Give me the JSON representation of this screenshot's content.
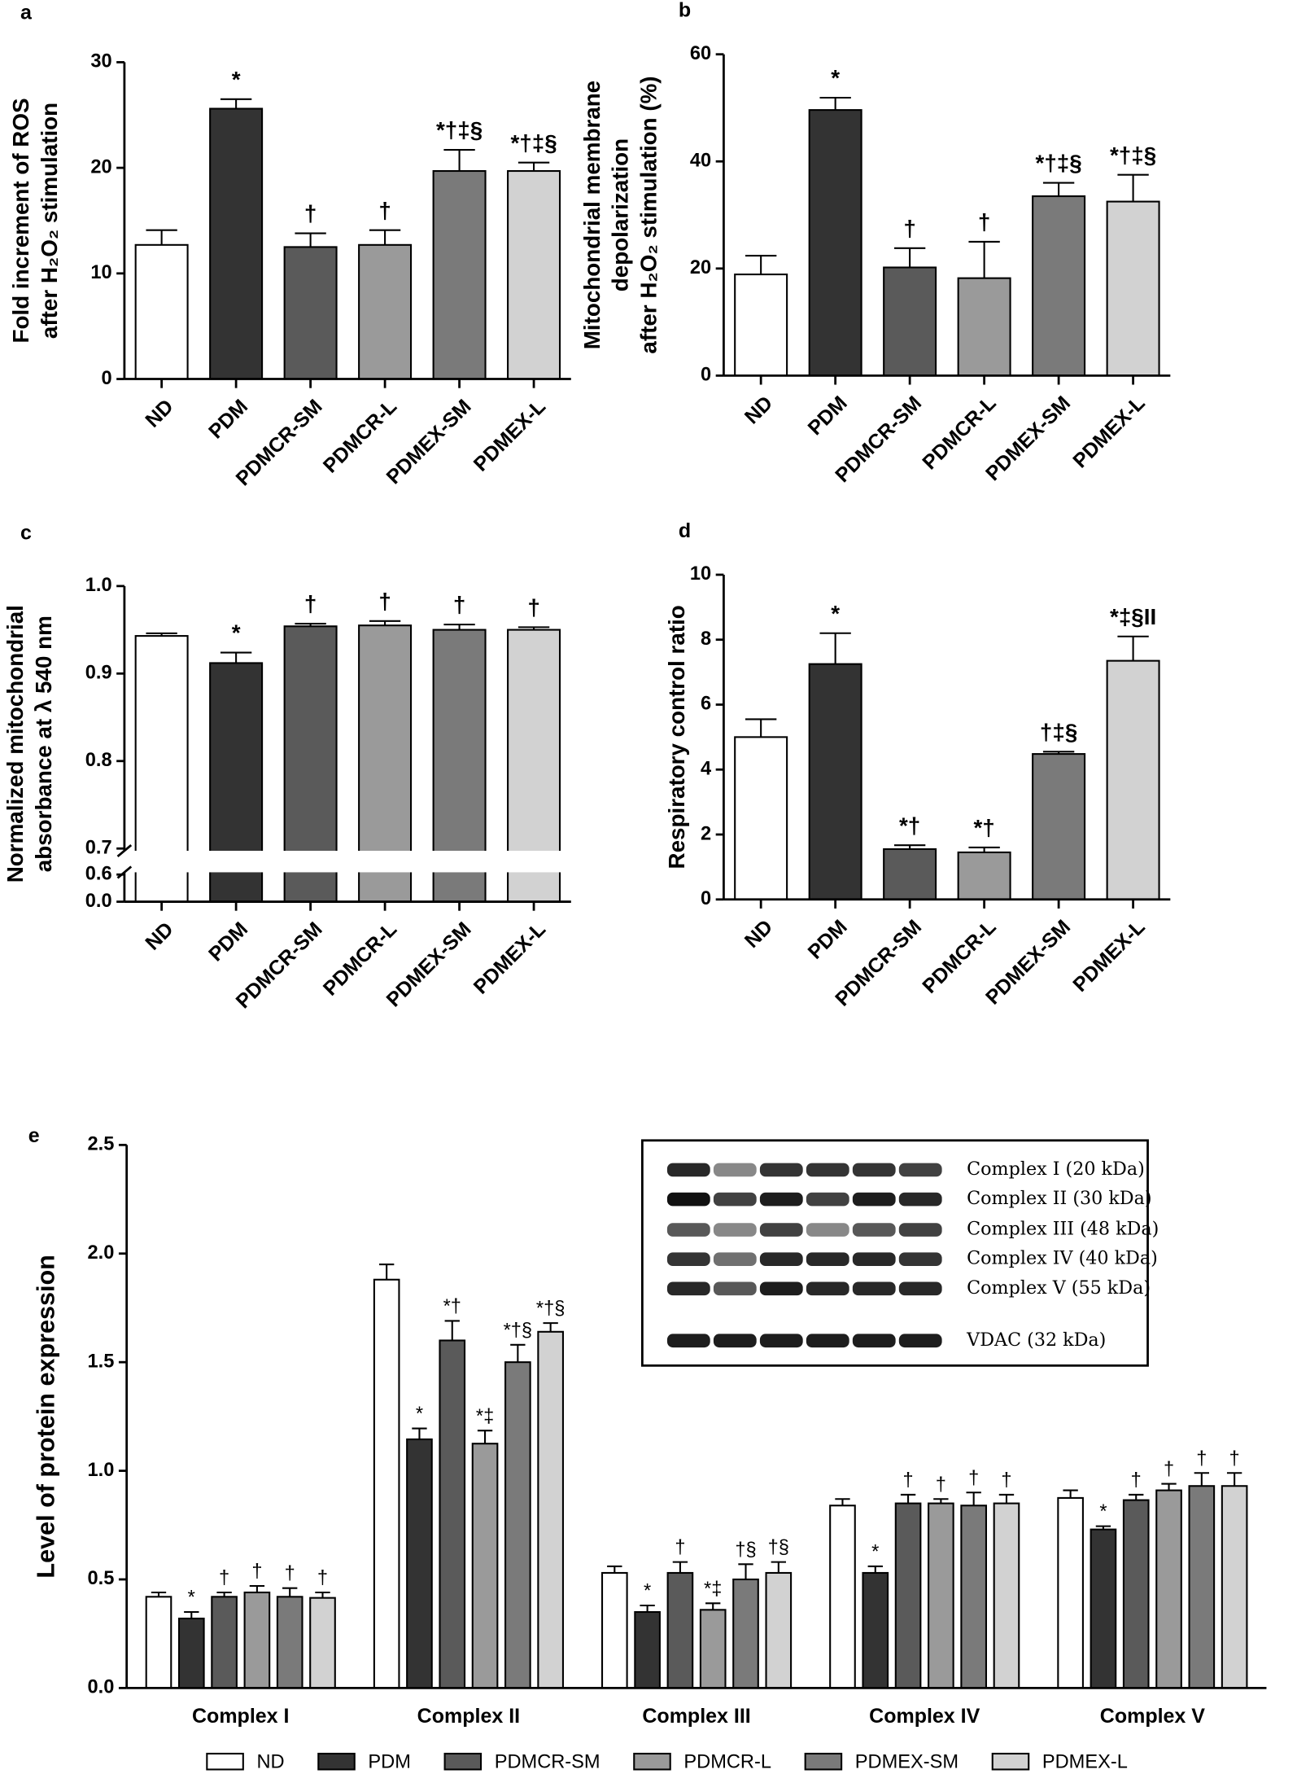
{
  "chart_data": [
    {
      "type": "bar",
      "panel": "a",
      "y_label": [
        "Fold increment of ROS",
        "after H₂O₂ stimulation"
      ],
      "categories": [
        "ND",
        "PDM",
        "PDMCR-SM",
        "PDMCR-L",
        "PDMEX-SM",
        "PDMEX-L"
      ],
      "values": [
        12.7,
        25.6,
        12.5,
        12.7,
        19.7,
        19.7
      ],
      "errors": [
        1.4,
        0.9,
        1.3,
        1.4,
        2.0,
        0.8
      ],
      "annotations": [
        null,
        "*",
        "†",
        "†",
        "*†‡§",
        "*†‡§"
      ],
      "colors": [
        "#ffffff",
        "#333333",
        "#5a5a5a",
        "#9a9a9a",
        "#7a7a7a",
        "#d2d2d2"
      ],
      "ylim": [
        0,
        30
      ],
      "yticks": [
        0,
        10,
        20,
        30
      ]
    },
    {
      "type": "bar",
      "panel": "b",
      "y_label": [
        "Mitochondrial membrane",
        "depolarization",
        "after H₂O₂ stimulation (%)"
      ],
      "categories": [
        "ND",
        "PDM",
        "PDMCR-SM",
        "PDMCR-L",
        "PDMEX-SM",
        "PDMEX-L"
      ],
      "values": [
        18.9,
        49.6,
        20.2,
        18.2,
        33.5,
        32.5
      ],
      "errors": [
        3.5,
        2.3,
        3.6,
        6.8,
        2.5,
        5.0
      ],
      "annotations": [
        null,
        "*",
        "†",
        "†",
        "*†‡§",
        "*†‡§"
      ],
      "colors": [
        "#ffffff",
        "#333333",
        "#5a5a5a",
        "#9a9a9a",
        "#7a7a7a",
        "#d2d2d2"
      ],
      "ylim": [
        0,
        60
      ],
      "yticks": [
        0,
        20,
        40,
        60
      ]
    },
    {
      "type": "bar",
      "panel": "c",
      "y_label": [
        "Normalized mitochondrial",
        "absorbance at λ 540 nm"
      ],
      "categories": [
        "ND",
        "PDM",
        "PDMCR-SM",
        "PDMCR-L",
        "PDMEX-SM",
        "PDMEX-L"
      ],
      "values": [
        0.943,
        0.912,
        0.954,
        0.955,
        0.95,
        0.95
      ],
      "errors": [
        0.003,
        0.012,
        0.003,
        0.005,
        0.006,
        0.003
      ],
      "annotations": [
        null,
        "*",
        "†",
        "†",
        "†",
        "†"
      ],
      "colors": [
        "#ffffff",
        "#333333",
        "#5a5a5a",
        "#9a9a9a",
        "#7a7a7a",
        "#d2d2d2"
      ],
      "ylim": [
        0,
        1
      ],
      "axis_break": [
        0.6,
        0.7
      ],
      "yticks": [
        {
          "value": 0,
          "label": "0.0"
        },
        0.6,
        0.7,
        0.8,
        0.9,
        {
          "value": 1,
          "label": "1.0"
        }
      ]
    },
    {
      "type": "bar",
      "panel": "d",
      "y_label": [
        "Respiratory control ratio"
      ],
      "categories": [
        "ND",
        "PDM",
        "PDMCR-SM",
        "PDMCR-L",
        "PDMEX-SM",
        "PDMEX-L"
      ],
      "values": [
        5.0,
        7.25,
        1.55,
        1.45,
        4.48,
        7.35
      ],
      "errors": [
        0.55,
        0.95,
        0.12,
        0.15,
        0.07,
        0.75
      ],
      "annotations": [
        null,
        "*",
        "*†",
        "*†",
        "†‡§",
        "*‡§II"
      ],
      "colors": [
        "#ffffff",
        "#333333",
        "#5a5a5a",
        "#9a9a9a",
        "#7a7a7a",
        "#d2d2d2"
      ],
      "ylim": [
        0,
        10
      ],
      "yticks": [
        0,
        2,
        4,
        6,
        8,
        10
      ]
    },
    {
      "type": "grouped_bar",
      "panel": "e",
      "y_label": [
        "Level of protein expression"
      ],
      "categories": [
        "Complex I",
        "Complex II",
        "Complex III",
        "Complex IV",
        "Complex V"
      ],
      "series": [
        {
          "name": "ND",
          "color": "#ffffff",
          "values": [
            0.42,
            1.88,
            0.53,
            0.84,
            0.875
          ],
          "errors": [
            0.02,
            0.07,
            0.03,
            0.03,
            0.035
          ],
          "annotations": [
            null,
            null,
            null,
            null,
            null
          ]
        },
        {
          "name": "PDM",
          "color": "#333333",
          "values": [
            0.32,
            1.145,
            0.35,
            0.53,
            0.73
          ],
          "errors": [
            0.03,
            0.05,
            0.03,
            0.03,
            0.015
          ],
          "annotations": [
            "*",
            "*",
            "*",
            "*",
            "*"
          ]
        },
        {
          "name": "PDMCR-SM",
          "color": "#5a5a5a",
          "values": [
            0.42,
            1.6,
            0.53,
            0.85,
            0.865
          ],
          "errors": [
            0.02,
            0.09,
            0.05,
            0.04,
            0.025
          ],
          "annotations": [
            "†",
            "*†",
            "†",
            "†",
            "†"
          ]
        },
        {
          "name": "PDMCR-L",
          "color": "#9a9a9a",
          "values": [
            0.44,
            1.125,
            0.36,
            0.85,
            0.91
          ],
          "errors": [
            0.03,
            0.06,
            0.03,
            0.02,
            0.03
          ],
          "annotations": [
            "†",
            "*‡",
            "*‡",
            "†",
            "†"
          ]
        },
        {
          "name": "PDMEX-SM",
          "color": "#7a7a7a",
          "values": [
            0.42,
            1.5,
            0.5,
            0.84,
            0.93
          ],
          "errors": [
            0.04,
            0.08,
            0.07,
            0.06,
            0.06
          ],
          "annotations": [
            "†",
            "*†§",
            "†§",
            "†",
            "†"
          ]
        },
        {
          "name": "PDMEX-L",
          "color": "#d2d2d2",
          "values": [
            0.415,
            1.64,
            0.53,
            0.85,
            0.93
          ],
          "errors": [
            0.025,
            0.04,
            0.05,
            0.04,
            0.06
          ],
          "annotations": [
            "†",
            "*†§",
            "†§",
            "†",
            "†"
          ]
        }
      ],
      "ylim": [
        0,
        2.5
      ],
      "yticks": [
        {
          "value": 0,
          "label": "0.0"
        },
        0.5,
        {
          "value": 1,
          "label": "1.0"
        },
        1.5,
        {
          "value": 2,
          "label": "2.0"
        },
        2.5
      ],
      "legend": "bottom",
      "inset_labels": [
        "Complex I (20 kDa)",
        "Complex II (30 kDa)",
        "Complex III (48 kDa)",
        "Complex IV (40 kDa)",
        "Complex V (55 kDa)",
        "VDAC (32 kDa)"
      ]
    }
  ]
}
